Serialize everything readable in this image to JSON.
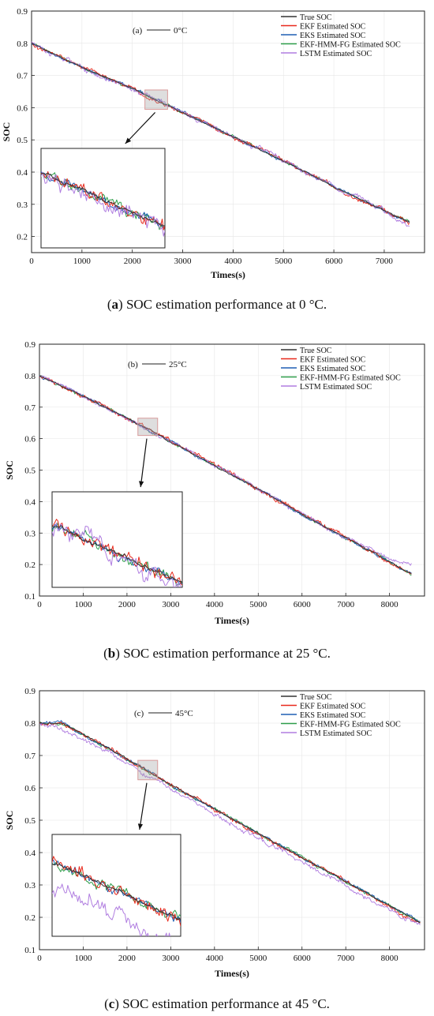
{
  "figure": {
    "panels": [
      {
        "caption_letter": "a",
        "caption_text": "SOC estimation performance at 0 °C."
      },
      {
        "caption_letter": "b",
        "caption_text": "SOC estimation performance at 25 °C."
      },
      {
        "caption_letter": "c",
        "caption_text": "SOC estimation performance at 45 °C."
      }
    ]
  },
  "chart_data": [
    {
      "type": "line",
      "panel_label": "(a)",
      "temperature_label": "0°C",
      "xlabel": "Times(s)",
      "ylabel": "SOC",
      "xlim": [
        0,
        7800
      ],
      "ylim": [
        0.15,
        0.9
      ],
      "xticks": [
        0,
        1000,
        2000,
        3000,
        4000,
        5000,
        6000,
        7000
      ],
      "yticks": [
        0.2,
        0.3,
        0.4,
        0.5,
        0.6,
        0.7,
        0.8,
        0.9
      ],
      "legend_position": "top-right",
      "grid": true,
      "inset_window": {
        "x": [
          2250,
          2700
        ],
        "y": [
          0.595,
          0.655
        ]
      },
      "series": [
        {
          "name": "True SOC",
          "color": "#333333",
          "x": [
            0,
            1000,
            2000,
            3000,
            4000,
            5000,
            6000,
            7000,
            7500
          ],
          "values": [
            0.8,
            0.725,
            0.66,
            0.585,
            0.51,
            0.435,
            0.355,
            0.28,
            0.245
          ]
        },
        {
          "name": "EKF Estimated SOC",
          "color": "#e8291c",
          "x": [
            0,
            1000,
            2000,
            3000,
            4000,
            5000,
            6000,
            7000,
            7500
          ],
          "values": [
            0.8,
            0.725,
            0.66,
            0.585,
            0.51,
            0.435,
            0.355,
            0.28,
            0.245
          ]
        },
        {
          "name": "EKS Estimated SOC",
          "color": "#1f5fb4",
          "x": [
            0,
            1000,
            2000,
            3000,
            4000,
            5000,
            6000,
            7000,
            7500
          ],
          "values": [
            0.8,
            0.725,
            0.66,
            0.585,
            0.51,
            0.435,
            0.355,
            0.28,
            0.245
          ]
        },
        {
          "name": "EKF-HMM-FG Estimated SOC",
          "color": "#2e9e4a",
          "x": [
            0,
            1000,
            2000,
            3000,
            4000,
            5000,
            6000,
            7000,
            7500
          ],
          "values": [
            0.8,
            0.725,
            0.66,
            0.585,
            0.51,
            0.435,
            0.355,
            0.28,
            0.245
          ]
        },
        {
          "name": "LSTM Estimated SOC",
          "color": "#b07de0",
          "x": [
            0,
            1000,
            2000,
            3000,
            4000,
            5000,
            6000,
            7000,
            7500
          ],
          "values": [
            0.8,
            0.725,
            0.66,
            0.585,
            0.51,
            0.435,
            0.355,
            0.28,
            0.23
          ]
        }
      ]
    },
    {
      "type": "line",
      "panel_label": "(b)",
      "temperature_label": "25°C",
      "xlabel": "Times(s)",
      "ylabel": "SOC",
      "xlim": [
        0,
        8800
      ],
      "ylim": [
        0.1,
        0.9
      ],
      "xticks": [
        0,
        1000,
        2000,
        3000,
        4000,
        5000,
        6000,
        7000,
        8000
      ],
      "yticks": [
        0.1,
        0.2,
        0.3,
        0.4,
        0.5,
        0.6,
        0.7,
        0.8,
        0.9
      ],
      "legend_position": "top-right",
      "grid": true,
      "inset_window": {
        "x": [
          2250,
          2700
        ],
        "y": [
          0.61,
          0.665
        ]
      },
      "series": [
        {
          "name": "True SOC",
          "color": "#333333",
          "x": [
            0,
            1000,
            2000,
            3000,
            4000,
            5000,
            6000,
            7000,
            8000,
            8500
          ],
          "values": [
            0.8,
            0.735,
            0.665,
            0.59,
            0.515,
            0.44,
            0.36,
            0.285,
            0.21,
            0.17
          ]
        },
        {
          "name": "EKF Estimated SOC",
          "color": "#e8291c",
          "x": [
            0,
            1000,
            2000,
            3000,
            4000,
            5000,
            6000,
            7000,
            8000,
            8500
          ],
          "values": [
            0.8,
            0.735,
            0.665,
            0.59,
            0.515,
            0.44,
            0.36,
            0.285,
            0.21,
            0.17
          ]
        },
        {
          "name": "EKS Estimated SOC",
          "color": "#1f5fb4",
          "x": [
            0,
            1000,
            2000,
            3000,
            4000,
            5000,
            6000,
            7000,
            8000,
            8500
          ],
          "values": [
            0.8,
            0.735,
            0.665,
            0.59,
            0.515,
            0.44,
            0.36,
            0.285,
            0.21,
            0.17
          ]
        },
        {
          "name": "EKF-HMM-FG Estimated SOC",
          "color": "#2e9e4a",
          "x": [
            0,
            1000,
            2000,
            3000,
            4000,
            5000,
            6000,
            7000,
            8000,
            8500
          ],
          "values": [
            0.8,
            0.735,
            0.665,
            0.59,
            0.515,
            0.44,
            0.36,
            0.285,
            0.21,
            0.17
          ]
        },
        {
          "name": "LSTM Estimated SOC",
          "color": "#b07de0",
          "x": [
            0,
            1000,
            2000,
            3000,
            4000,
            5000,
            6000,
            7000,
            8000,
            8500
          ],
          "values": [
            0.8,
            0.735,
            0.665,
            0.59,
            0.515,
            0.44,
            0.36,
            0.285,
            0.215,
            0.205
          ]
        }
      ]
    },
    {
      "type": "line",
      "panel_label": "(c)",
      "temperature_label": "45°C",
      "xlabel": "Times(s)",
      "ylabel": "SOC",
      "xlim": [
        0,
        8800
      ],
      "ylim": [
        0.1,
        0.9
      ],
      "xticks": [
        0,
        1000,
        2000,
        3000,
        4000,
        5000,
        6000,
        7000,
        8000
      ],
      "yticks": [
        0.1,
        0.2,
        0.3,
        0.4,
        0.5,
        0.6,
        0.7,
        0.8,
        0.9
      ],
      "legend_position": "top-right",
      "grid": true,
      "inset_window": {
        "x": [
          2250,
          2700
        ],
        "y": [
          0.625,
          0.685
        ]
      },
      "series": [
        {
          "name": "True SOC",
          "color": "#333333",
          "x": [
            0,
            500,
            1000,
            2000,
            3000,
            4000,
            5000,
            6000,
            7000,
            8000,
            8700
          ],
          "values": [
            0.8,
            0.8,
            0.765,
            0.69,
            0.61,
            0.535,
            0.46,
            0.385,
            0.31,
            0.235,
            0.185
          ]
        },
        {
          "name": "EKF Estimated SOC",
          "color": "#e8291c",
          "x": [
            0,
            500,
            1000,
            2000,
            3000,
            4000,
            5000,
            6000,
            7000,
            8000,
            8700
          ],
          "values": [
            0.8,
            0.8,
            0.765,
            0.69,
            0.61,
            0.535,
            0.46,
            0.385,
            0.31,
            0.235,
            0.185
          ]
        },
        {
          "name": "EKS Estimated SOC",
          "color": "#1f5fb4",
          "x": [
            0,
            500,
            1000,
            2000,
            3000,
            4000,
            5000,
            6000,
            7000,
            8000,
            8700
          ],
          "values": [
            0.8,
            0.8,
            0.765,
            0.69,
            0.61,
            0.535,
            0.46,
            0.385,
            0.31,
            0.235,
            0.185
          ]
        },
        {
          "name": "EKF-HMM-FG Estimated SOC",
          "color": "#2e9e4a",
          "x": [
            0,
            500,
            1000,
            2000,
            3000,
            4000,
            5000,
            6000,
            7000,
            8000,
            8700
          ],
          "values": [
            0.8,
            0.8,
            0.765,
            0.69,
            0.61,
            0.535,
            0.46,
            0.385,
            0.31,
            0.235,
            0.185
          ]
        },
        {
          "name": "LSTM Estimated SOC",
          "color": "#b07de0",
          "x": [
            0,
            500,
            1000,
            2000,
            3000,
            4000,
            5000,
            6000,
            7000,
            8000,
            8700
          ],
          "values": [
            0.8,
            0.785,
            0.75,
            0.675,
            0.595,
            0.52,
            0.445,
            0.37,
            0.295,
            0.22,
            0.175
          ]
        }
      ]
    }
  ]
}
